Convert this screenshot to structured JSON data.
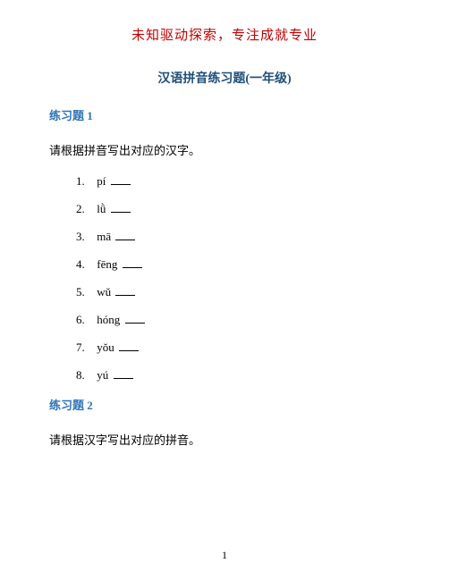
{
  "header": "未知驱动探索，专注成就专业",
  "title": "汉语拼音练习题(一年级)",
  "section1": {
    "title": "练习题 1",
    "instruction": "请根据拼音写出对应的汉字。",
    "questions": [
      {
        "num": "1.",
        "pinyin": "pí"
      },
      {
        "num": "2.",
        "pinyin": "lǜ"
      },
      {
        "num": "3.",
        "pinyin": "mā"
      },
      {
        "num": "4.",
        "pinyin": "fēng"
      },
      {
        "num": "5.",
        "pinyin": "wǔ"
      },
      {
        "num": "6.",
        "pinyin": "hóng"
      },
      {
        "num": "7.",
        "pinyin": "yǒu"
      },
      {
        "num": "8.",
        "pinyin": "yú"
      }
    ]
  },
  "section2": {
    "title": "练习题 2",
    "instruction": "请根据汉字写出对应的拼音。"
  },
  "pageNumber": "1",
  "colors": {
    "headerColor": "#c00000",
    "titleColor": "#1f4e79",
    "sectionColor": "#2e74b5",
    "textColor": "#000000",
    "backgroundColor": "#ffffff"
  },
  "fonts": {
    "chineseFontFamily": "SimSun",
    "latinFontFamily": "Times New Roman",
    "headerSize": 15,
    "titleSize": 14,
    "sectionSize": 13,
    "bodySize": 13
  }
}
